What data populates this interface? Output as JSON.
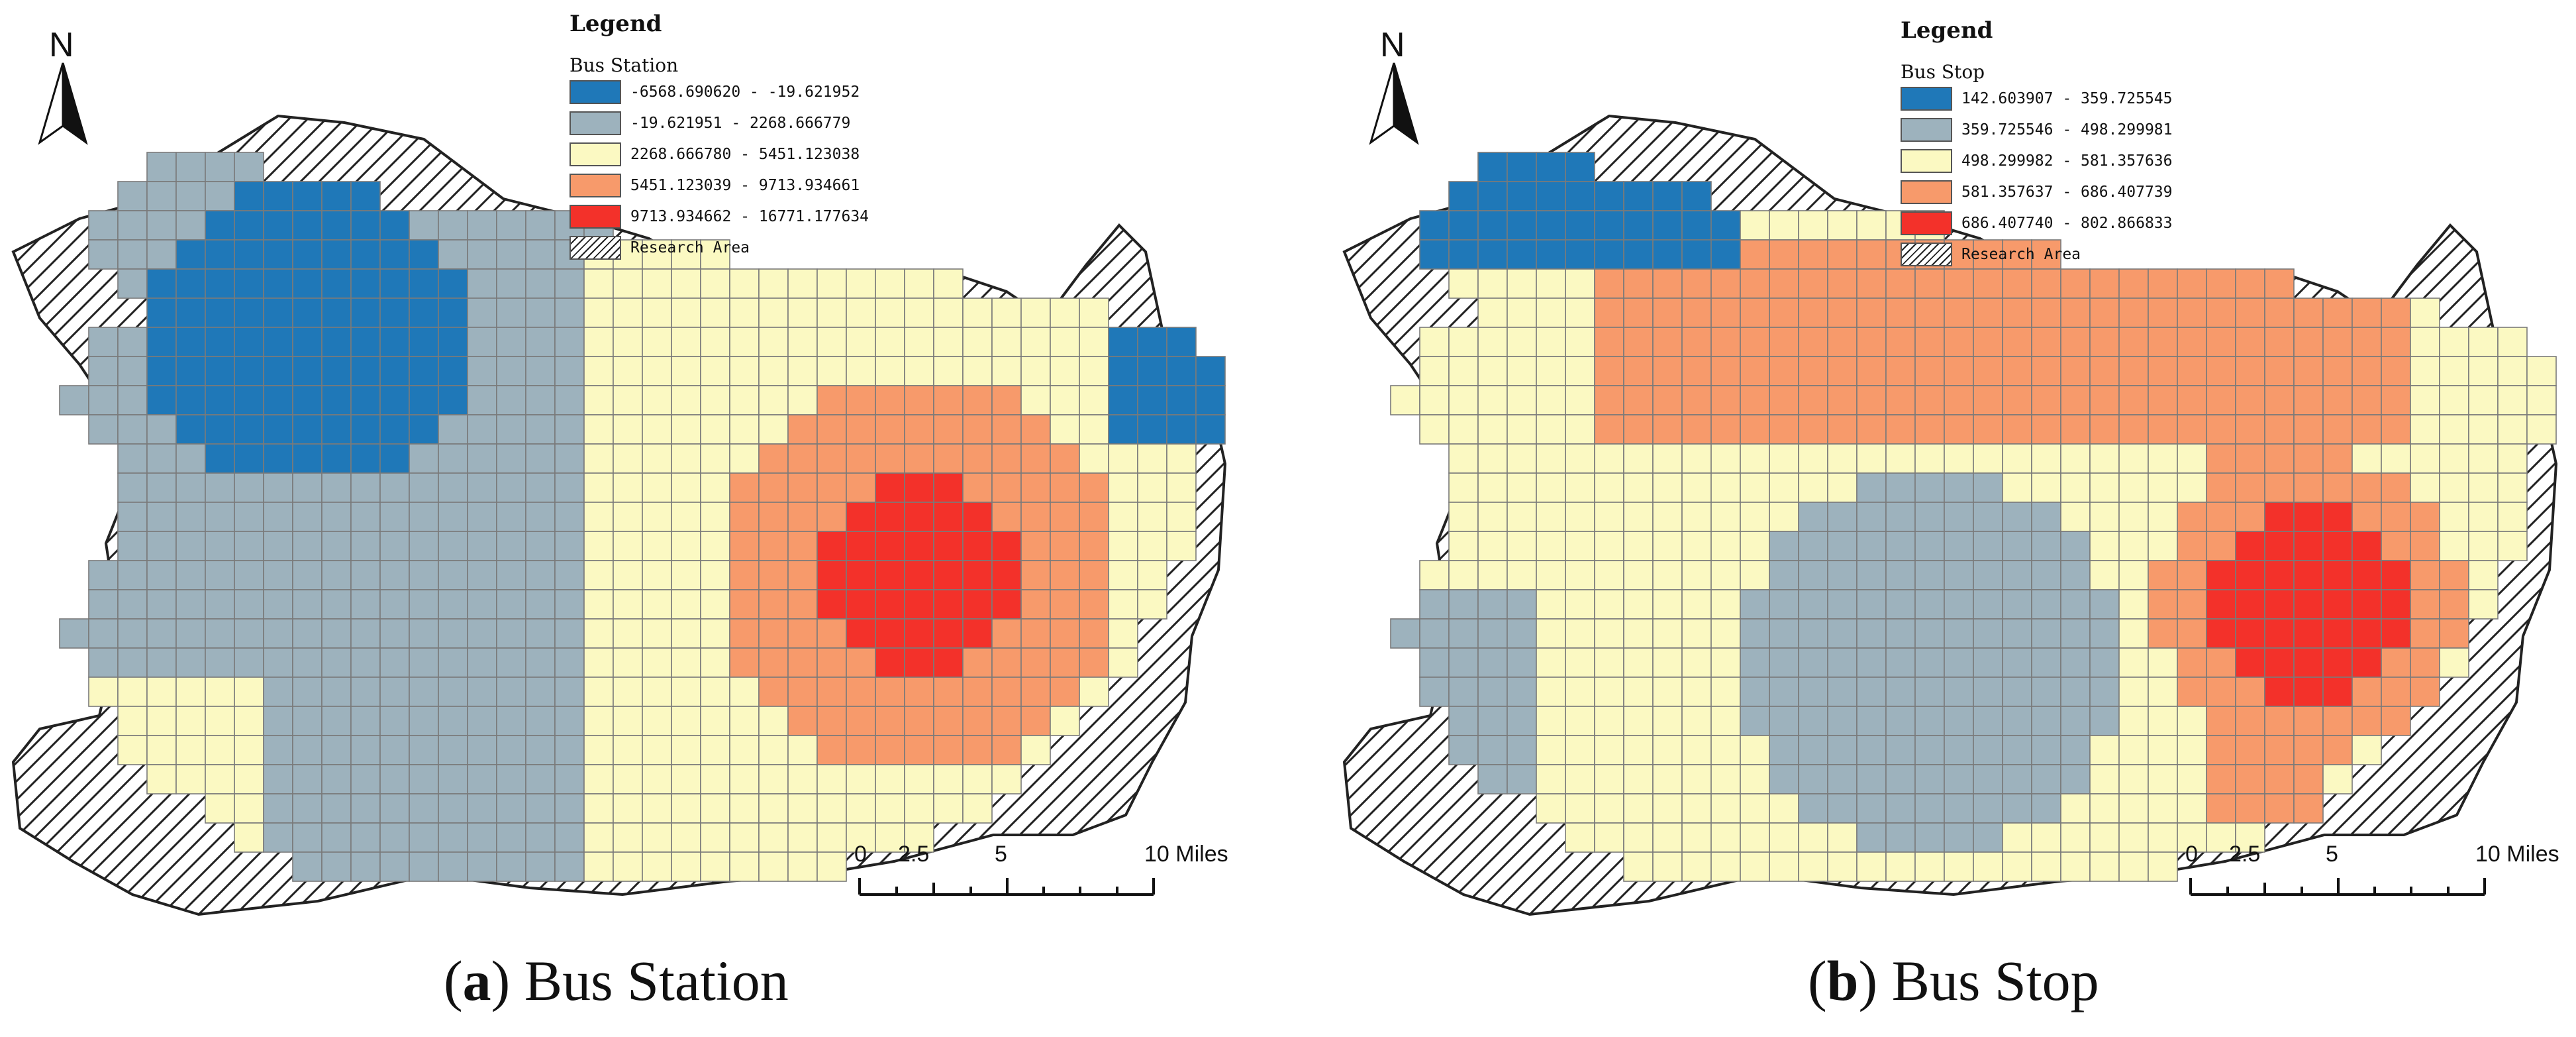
{
  "colors": {
    "c1": "#1f78b8",
    "c2": "#9db2bd",
    "c3": "#fbf9c2",
    "c4": "#f79a6b",
    "c5": "#f3312a",
    "grid": "#7a7a7a",
    "hatch": "#222222"
  },
  "panels": [
    {
      "north": "N",
      "legend": {
        "title": "Legend",
        "layer": "Bus Station",
        "classes": [
          {
            "label": "-6568.690620 - -19.621952",
            "color": "#1f78b8"
          },
          {
            "label": "-19.621951 - 2268.666779",
            "color": "#9db2bd"
          },
          {
            "label": "2268.666780 - 5451.123038",
            "color": "#fbf9c2"
          },
          {
            "label": "5451.123039 - 9713.934661",
            "color": "#f79a6b"
          },
          {
            "label": "9713.934662 - 16771.177634",
            "color": "#f3312a"
          }
        ],
        "research_area": "Research Area"
      },
      "scale": {
        "labels": [
          "0",
          "2.5",
          "5",
          "10 Miles"
        ]
      },
      "caption": {
        "letter": "a",
        "text": " Bus Station"
      }
    },
    {
      "north": "N",
      "legend": {
        "title": "Legend",
        "layer": "Bus Stop",
        "classes": [
          {
            "label": "142.603907 - 359.725545",
            "color": "#1f78b8"
          },
          {
            "label": "359.725546 - 498.299981",
            "color": "#9db2bd"
          },
          {
            "label": "498.299982 - 581.357636",
            "color": "#fbf9c2"
          },
          {
            "label": "581.357637 - 686.407739",
            "color": "#f79a6b"
          },
          {
            "label": "686.407740 - 802.866833",
            "color": "#f3312a"
          }
        ],
        "research_area": "Research Area"
      },
      "scale": {
        "labels": [
          "0",
          "2.5",
          "5",
          "10 Miles"
        ]
      },
      "caption": {
        "letter": "b",
        "text": " Bus Stop"
      }
    }
  ]
}
